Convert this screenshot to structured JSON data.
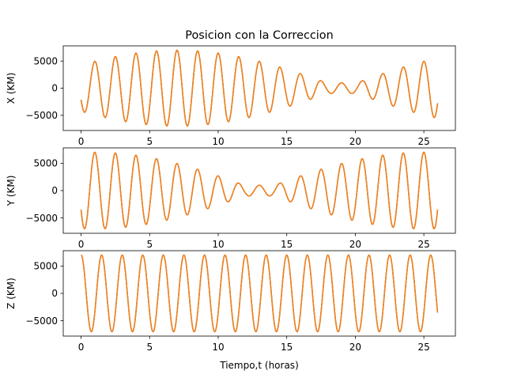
{
  "title": "Posicion con la Correccion",
  "xlabel": "Tiempo,t (horas)",
  "colors": {
    "blue_series": "#1f77b4",
    "orange_series": "#ff7f0e"
  },
  "chart_data": [
    {
      "type": "line",
      "ylabel": "X (KM)",
      "x_range": [
        0,
        26
      ],
      "ylim": [
        -7800,
        7800
      ],
      "x_ticks": [
        0,
        5,
        10,
        15,
        20,
        25
      ],
      "y_ticks": [
        -5000,
        0,
        5000
      ],
      "x_tick_labels": [
        "0",
        "5",
        "10",
        "15",
        "20",
        "25"
      ],
      "y_tick_labels": [
        "−5000",
        "0",
        "5000"
      ],
      "model": {
        "kind": "beat",
        "amplitude": 7000,
        "carrier_period_h": 1.5,
        "envelope_period_h": 24,
        "envelope_peak_h": 7.0,
        "min_envelope": 0.14
      },
      "series": [
        {
          "color": "#1f77b4"
        },
        {
          "color": "#ff7f0e"
        }
      ]
    },
    {
      "type": "line",
      "ylabel": "Y (KM)",
      "x_range": [
        0,
        26
      ],
      "ylim": [
        -7800,
        7800
      ],
      "x_ticks": [
        0,
        5,
        10,
        15,
        20,
        25
      ],
      "y_ticks": [
        -5000,
        0,
        5000
      ],
      "x_tick_labels": [
        "0",
        "5",
        "10",
        "15",
        "20",
        "25"
      ],
      "y_tick_labels": [
        "−5000",
        "0",
        "5000"
      ],
      "model": {
        "kind": "beat",
        "amplitude": 7000,
        "carrier_period_h": 1.5,
        "envelope_period_h": 24,
        "envelope_peak_h": 1.0,
        "min_envelope": 0.14
      },
      "series": [
        {
          "color": "#1f77b4"
        },
        {
          "color": "#ff7f0e"
        }
      ]
    },
    {
      "type": "line",
      "ylabel": "Z (KM)",
      "x_range": [
        0,
        26
      ],
      "ylim": [
        -7800,
        7800
      ],
      "x_ticks": [
        0,
        5,
        10,
        15,
        20,
        25
      ],
      "y_ticks": [
        -5000,
        0,
        5000
      ],
      "x_tick_labels": [
        "0",
        "5",
        "10",
        "15",
        "20",
        "25"
      ],
      "y_tick_labels": [
        "−5000",
        "0",
        "5000"
      ],
      "model": {
        "kind": "cosine",
        "amplitude": 7000,
        "carrier_period_h": 1.5
      },
      "series": [
        {
          "color": "#1f77b4"
        },
        {
          "color": "#ff7f0e"
        }
      ]
    }
  ]
}
